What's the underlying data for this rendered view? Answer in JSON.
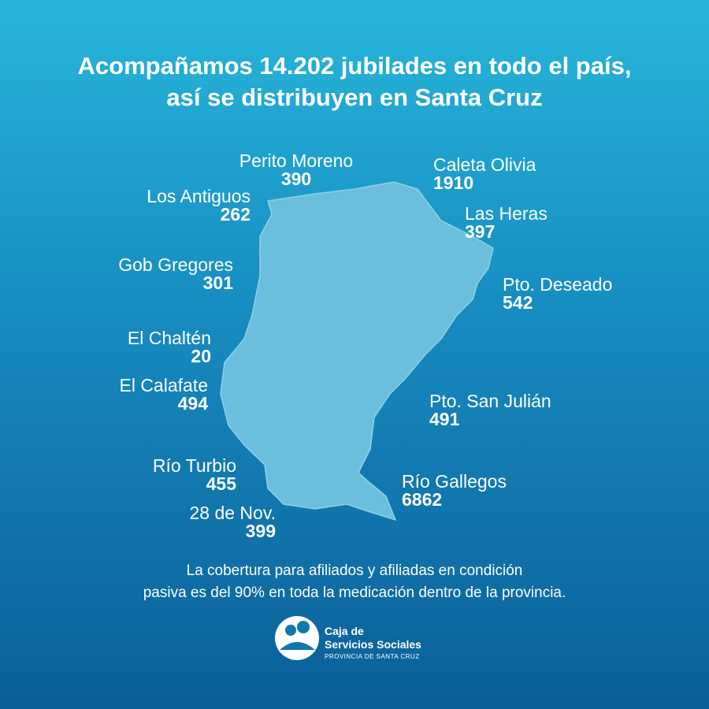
{
  "header": {
    "title_lines": [
      "Acompañamos 14.202 jubilades en todo el país,",
      "así se distribuyen en Santa Cruz"
    ]
  },
  "locations": [
    {
      "name": "Perito Moreno",
      "count": 390
    },
    {
      "name": "Los Antiguos",
      "count": 262
    },
    {
      "name": "Gob Gregores",
      "count": 301
    },
    {
      "name": "El Chaltén",
      "count": 20
    },
    {
      "name": "El Calafate",
      "count": 494
    },
    {
      "name": "Río Turbio",
      "count": 455
    },
    {
      "name": "28 de Nov.",
      "count": 399
    },
    {
      "name": "Caleta Olivia",
      "count": 1910
    },
    {
      "name": "Las Heras",
      "count": 397
    },
    {
      "name": "Pto. Deseado",
      "count": 542
    },
    {
      "name": "Pto. San Julián",
      "count": 491
    },
    {
      "name": "Río Gallegos",
      "count": 6862
    }
  ],
  "footer": {
    "note_lines": [
      "La cobertura para afiliados y afiliadas en condición",
      "pasiva es del 90% en toda la medicación dentro de la provincia."
    ]
  },
  "logo": {
    "line1": "Caja de",
    "line2": "Servicios Sociales",
    "line3": "PROVINCIA DE SANTA CRUZ"
  }
}
